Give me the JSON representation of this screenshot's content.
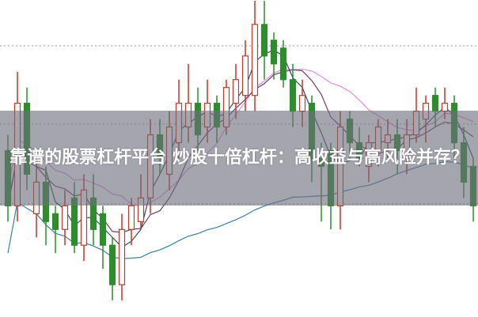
{
  "title": "靠谱的股票杠杆平台 炒股十倍杠杆：高收益与高风险并存？",
  "chart_data": {
    "type": "candlestick",
    "ylim": [
      0,
      40
    ],
    "grid": "dotted horizontal",
    "colors": {
      "up": "#c0392b",
      "down": "#2e8b2e",
      "ma5": "#2f4f5f",
      "ma10": "#6a3d6a",
      "ma20": "#e08ee0",
      "ma60": "#3a7fa8"
    },
    "candles": [
      [
        21,
        14,
        23,
        12
      ],
      [
        14,
        27,
        31,
        12
      ],
      [
        27,
        18,
        29,
        16
      ],
      [
        13,
        17,
        20,
        10
      ],
      [
        17,
        12,
        19,
        9
      ],
      [
        13,
        11,
        14,
        8
      ],
      [
        11,
        14,
        16,
        9
      ],
      [
        15,
        9,
        17,
        8
      ],
      [
        9,
        16,
        18,
        7
      ],
      [
        15,
        11,
        18,
        9
      ],
      [
        13,
        9,
        14,
        6
      ],
      [
        9,
        4,
        10,
        2
      ],
      [
        4,
        11,
        13,
        2
      ],
      [
        11,
        14,
        15,
        9
      ],
      [
        12,
        15,
        18,
        11
      ],
      [
        15,
        23,
        25,
        13
      ],
      [
        23,
        20,
        25,
        18
      ],
      [
        18,
        24,
        26,
        16
      ],
      [
        22,
        27,
        30,
        20
      ],
      [
        24,
        27,
        32,
        22
      ],
      [
        27,
        23,
        29,
        21
      ],
      [
        24,
        27,
        30,
        22
      ],
      [
        27,
        24,
        28,
        22
      ],
      [
        24,
        29,
        30,
        23
      ],
      [
        27,
        30,
        32,
        25
      ],
      [
        28,
        33,
        35,
        26
      ],
      [
        28,
        37,
        40,
        26
      ],
      [
        37,
        33,
        40,
        30
      ],
      [
        35,
        32,
        36,
        30
      ],
      [
        34,
        30,
        35,
        29
      ],
      [
        30,
        26,
        32,
        24
      ],
      [
        26,
        28,
        30,
        24
      ],
      [
        27,
        20,
        28,
        17
      ],
      [
        20,
        19,
        22,
        12
      ],
      [
        21,
        14,
        22,
        11
      ],
      [
        14,
        24,
        26,
        11
      ],
      [
        25,
        22,
        26,
        20
      ],
      [
        22,
        20,
        24,
        19
      ],
      [
        19,
        22,
        23,
        17
      ],
      [
        21,
        24,
        25,
        19
      ],
      [
        22,
        23,
        25,
        20
      ],
      [
        23,
        21,
        25,
        18
      ],
      [
        20,
        23,
        25,
        18
      ],
      [
        23,
        26,
        29,
        22
      ],
      [
        25,
        27,
        28,
        22
      ],
      [
        28,
        26,
        29,
        24
      ],
      [
        26,
        27,
        29,
        25
      ],
      [
        27,
        22,
        28,
        20
      ],
      [
        22,
        17,
        24,
        15
      ],
      [
        19,
        14,
        20,
        12
      ]
    ]
  }
}
